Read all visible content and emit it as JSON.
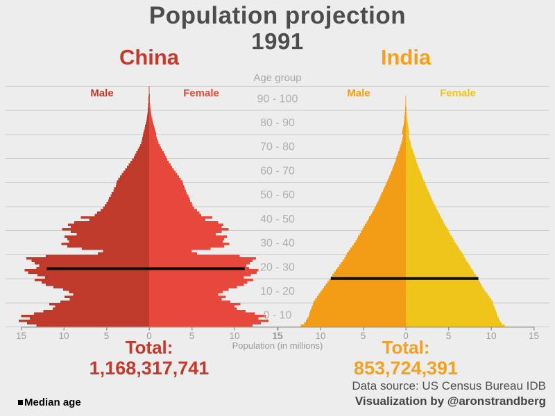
{
  "title": {
    "line1": "Population projection",
    "line2": "1991"
  },
  "footer": {
    "source": "Data source: US Census Bureau IDB",
    "credit": "Visualization by @aronstrandberg",
    "median_legend": "Median age"
  },
  "colors": {
    "background": "#ededed",
    "title_text": "#4d4d4d",
    "gridline": "#cacaca",
    "axis": "#9a9a9a",
    "age_label": "#b0aeae",
    "median_line": "#0d0d0d"
  },
  "chart_data": {
    "type": "bar",
    "subtype": "population-pyramid-pair",
    "age_axis_title": "Age group",
    "x_axis_title": "Population (in millions)",
    "age_groups": [
      "90 - 100",
      "80 - 90",
      "70 - 80",
      "60 - 70",
      "50 - 60",
      "40 - 50",
      "30 - 40",
      "20 - 30",
      "10 - 20",
      "0 - 10"
    ],
    "x_ticks": [
      -15,
      -10,
      -5,
      0,
      5,
      10,
      15
    ],
    "xlim": [
      -15,
      15
    ],
    "unit": "millions of people per single year of age",
    "pyramids": [
      {
        "id": "china",
        "label": "China",
        "accent": "#c7372a",
        "male_label": "Male",
        "female_label": "Female",
        "male_color": "#c03a2b",
        "female_color": "#e8483b",
        "total_label": "Total:",
        "total_value": "1,168,317,741",
        "median_age": 24.2,
        "median_span_male": 12.0,
        "median_span_female": 11.2,
        "male": [
          13.2,
          14.3,
          15.3,
          14.0,
          15.0,
          13.5,
          12.4,
          11.3,
          11.0,
          11.7,
          10.4,
          9.3,
          9.9,
          8.9,
          9.4,
          10.1,
          11.2,
          12.1,
          12.6,
          13.4,
          12.2,
          13.1,
          14.2,
          14.6,
          13.2,
          12.9,
          13.4,
          13.8,
          14.4,
          12.1,
          6.0,
          5.4,
          7.9,
          9.6,
          10.3,
          9.4,
          9.6,
          9.9,
          8.5,
          9.2,
          10.2,
          9.2,
          9.5,
          8.8,
          7.0,
          8.0,
          6.4,
          6.1,
          5.7,
          5.4,
          5.2,
          5.0,
          4.8,
          4.7,
          4.5,
          4.4,
          4.2,
          4.1,
          3.9,
          3.85,
          3.8,
          3.6,
          3.4,
          3.2,
          3.0,
          2.8,
          2.6,
          2.4,
          2.2,
          2.0,
          1.8,
          1.65,
          1.5,
          1.35,
          1.2,
          1.05,
          0.95,
          0.85,
          0.8,
          0.75,
          0.7,
          0.62,
          0.54,
          0.47,
          0.4,
          0.34,
          0.29,
          0.25,
          0.21,
          0.18,
          0.15,
          0.13,
          0.11,
          0.09,
          0.08,
          0.07,
          0.06,
          0.05,
          0.04,
          0.03
        ],
        "female": [
          12.1,
          13.1,
          14.0,
          12.8,
          13.7,
          12.4,
          11.3,
          10.3,
          10.0,
          10.7,
          9.5,
          8.5,
          9.0,
          8.1,
          8.6,
          9.3,
          10.3,
          11.1,
          11.5,
          12.2,
          11.1,
          11.9,
          12.6,
          12.8,
          11.7,
          11.4,
          11.8,
          12.1,
          12.5,
          10.6,
          5.6,
          5.0,
          7.2,
          8.8,
          9.4,
          8.6,
          8.8,
          9.1,
          7.8,
          8.5,
          9.3,
          8.5,
          8.7,
          8.1,
          6.6,
          7.4,
          6.1,
          5.9,
          5.6,
          5.3,
          5.1,
          5.0,
          4.8,
          4.7,
          4.6,
          4.4,
          4.3,
          4.2,
          4.1,
          4.0,
          3.9,
          3.7,
          3.5,
          3.3,
          3.1,
          2.9,
          2.7,
          2.5,
          2.3,
          2.1,
          2.0,
          1.85,
          1.7,
          1.55,
          1.4,
          1.25,
          1.1,
          1.0,
          0.9,
          0.8,
          0.8,
          0.72,
          0.64,
          0.56,
          0.48,
          0.41,
          0.35,
          0.29,
          0.24,
          0.2,
          0.17,
          0.14,
          0.12,
          0.1,
          0.09,
          0.08,
          0.07,
          0.06,
          0.05,
          0.04
        ]
      },
      {
        "id": "india",
        "label": "India",
        "accent": "#f6a11d",
        "male_label": "Male",
        "female_label": "Female",
        "male_color": "#f39c15",
        "female_color": "#f0c51a",
        "total_label": "Total:",
        "total_value": "853,724,391",
        "median_age": 20.1,
        "median_span_male": 8.8,
        "median_span_female": 8.5,
        "male": [
          12.3,
          11.9,
          11.7,
          11.55,
          11.4,
          11.3,
          11.2,
          11.1,
          11.0,
          10.9,
          10.8,
          10.6,
          10.4,
          10.2,
          10.0,
          9.8,
          9.6,
          9.4,
          9.2,
          9.0,
          8.8,
          8.6,
          8.4,
          8.2,
          8.0,
          7.8,
          7.6,
          7.4,
          7.2,
          7.05,
          6.9,
          6.7,
          6.5,
          6.3,
          6.1,
          5.9,
          5.75,
          5.6,
          5.4,
          5.25,
          5.1,
          4.95,
          4.8,
          4.6,
          4.45,
          4.3,
          4.1,
          3.95,
          3.8,
          3.65,
          3.5,
          3.36,
          3.22,
          3.09,
          2.96,
          2.83,
          2.7,
          2.57,
          2.44,
          2.31,
          2.2,
          2.07,
          1.95,
          1.83,
          1.71,
          1.6,
          1.49,
          1.38,
          1.28,
          1.19,
          1.1,
          0.99,
          0.88,
          0.78,
          0.69,
          0.6,
          0.52,
          0.45,
          0.39,
          0.34,
          0.45,
          0.4,
          0.35,
          0.3,
          0.26,
          0.22,
          0.18,
          0.15,
          0.12,
          0.1,
          0.08,
          0.065,
          0.05,
          0.04,
          0.03,
          0.025,
          0.02,
          0.015,
          0.01,
          0.008
        ],
        "female": [
          11.6,
          11.2,
          11.0,
          10.9,
          10.75,
          10.65,
          10.55,
          10.45,
          10.35,
          10.25,
          10.2,
          10.0,
          9.8,
          9.6,
          9.4,
          9.2,
          9.0,
          8.85,
          8.7,
          8.55,
          8.4,
          8.2,
          8.0,
          7.85,
          7.65,
          7.5,
          7.3,
          7.1,
          6.95,
          6.8,
          6.65,
          6.45,
          6.25,
          6.1,
          5.9,
          5.7,
          5.55,
          5.4,
          5.2,
          5.05,
          4.9,
          4.75,
          4.6,
          4.45,
          4.3,
          4.15,
          4.0,
          3.85,
          3.7,
          3.55,
          3.4,
          3.27,
          3.14,
          3.01,
          2.88,
          2.76,
          2.64,
          2.52,
          2.4,
          2.29,
          2.18,
          2.05,
          1.93,
          1.81,
          1.7,
          1.59,
          1.48,
          1.38,
          1.28,
          1.19,
          1.1,
          1.0,
          0.9,
          0.8,
          0.71,
          0.63,
          0.55,
          0.48,
          0.41,
          0.35,
          0.42,
          0.37,
          0.32,
          0.28,
          0.24,
          0.2,
          0.17,
          0.14,
          0.11,
          0.09,
          0.07,
          0.06,
          0.05,
          0.04,
          0.03,
          0.025,
          0.02,
          0.015,
          0.01,
          0.008
        ]
      }
    ]
  }
}
